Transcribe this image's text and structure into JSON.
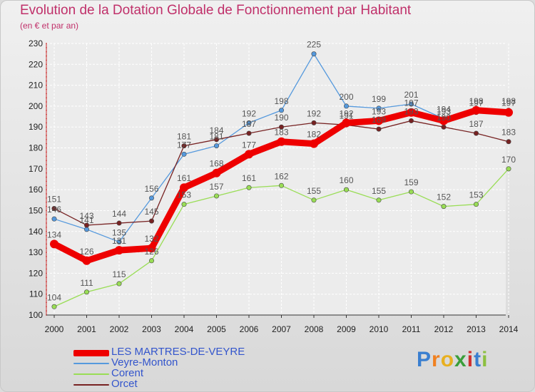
{
  "header": {
    "title": "Evolution de la Dotation Globale de Fonctionnement par Habitant",
    "subtitle": "(en € et par an)"
  },
  "logo": {
    "letters": [
      "P",
      "r",
      "o",
      "x",
      "i",
      "t",
      "i"
    ],
    "colors": [
      "#3a7fd0",
      "#f08020",
      "#e8b020",
      "#3a9e3a",
      "#d03030",
      "#3a7fd0",
      "#8cc040"
    ]
  },
  "chart_data": {
    "type": "line",
    "title": "Evolution de la Dotation Globale de Fonctionnement par Habitant",
    "subtitle": "(en € et par an)",
    "x": [
      2000,
      2001,
      2002,
      2003,
      2004,
      2005,
      2006,
      2007,
      2008,
      2009,
      2010,
      2011,
      2012,
      2013,
      2014
    ],
    "ylim": [
      100,
      230
    ],
    "yticks": [
      100,
      110,
      120,
      130,
      140,
      150,
      160,
      170,
      180,
      190,
      200,
      210,
      220,
      230
    ],
    "grid": true,
    "legend_position": "bottom-left",
    "series": [
      {
        "name": "LES MARTRES-DE-VEYRE",
        "color": "#ee0000",
        "values": [
          134,
          126,
          131,
          132,
          161,
          168,
          177,
          183,
          182,
          192,
          193,
          197,
          193,
          198,
          197
        ],
        "labels": [
          "134",
          "126",
          "131",
          "132",
          "161",
          "168",
          "177",
          "183",
          "182",
          "192",
          "193",
          "197",
          "193",
          "198",
          "197"
        ]
      },
      {
        "name": "Veyre-Monton",
        "color": "#5599dd",
        "values": [
          146,
          141,
          135,
          156,
          177,
          181,
          192,
          198,
          225,
          200,
          199,
          201,
          194,
          197,
          198
        ],
        "labels": [
          "146",
          "141",
          "135",
          "156",
          "177",
          "181",
          "192",
          "198",
          "225",
          "200",
          "199",
          "201",
          "194",
          "197",
          "198"
        ]
      },
      {
        "name": "Corent",
        "color": "#99dd55",
        "values": [
          104,
          111,
          115,
          126,
          153,
          157,
          161,
          162,
          155,
          160,
          155,
          159,
          152,
          153,
          170
        ],
        "labels": [
          "104",
          "111",
          "115",
          "126",
          "153",
          "157",
          "161",
          "162",
          "155",
          "160",
          "155",
          "159",
          "152",
          "153",
          "170"
        ]
      },
      {
        "name": "Orcet",
        "color": "#772222",
        "values": [
          151,
          143,
          144,
          145,
          181,
          184,
          187,
          190,
          192,
          191,
          189,
          193,
          190,
          187,
          183
        ],
        "labels": [
          "151",
          "143",
          "144",
          "145",
          "181",
          "184",
          "187",
          "190",
          "192",
          "191",
          "189",
          "193",
          "190",
          "187",
          "183"
        ]
      }
    ]
  }
}
